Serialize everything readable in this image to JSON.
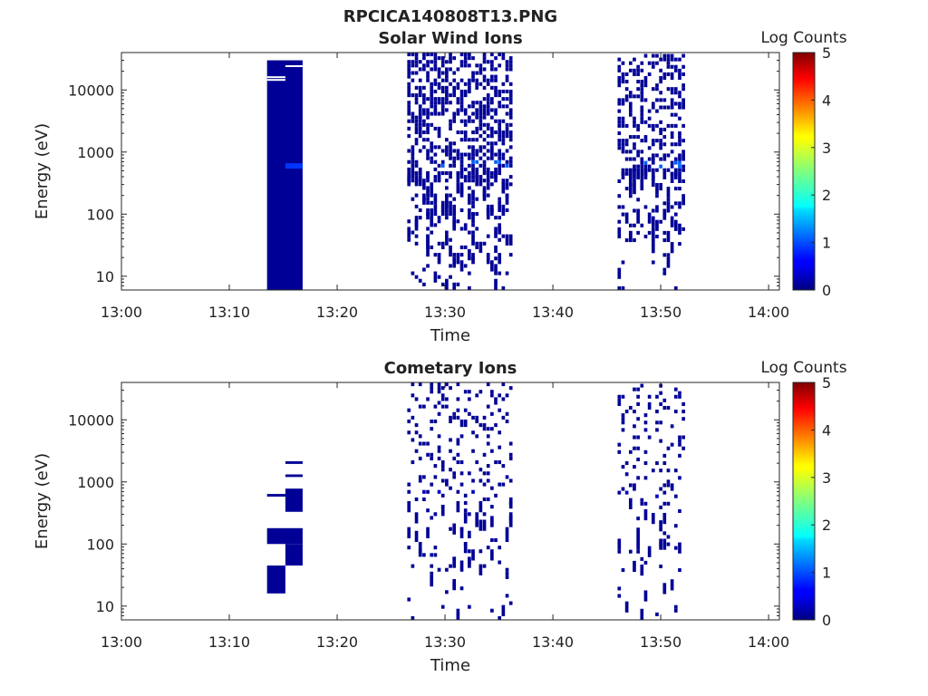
{
  "figure": {
    "title": "RPCICA140808T13.PNG"
  },
  "chart_data": [
    {
      "type": "heatmap",
      "title": "Solar Wind Ions",
      "xlabel": "Time",
      "ylabel": "Energy (eV)",
      "x_ticks": [
        "13:00",
        "13:10",
        "13:20",
        "13:30",
        "13:40",
        "13:50",
        "14:00"
      ],
      "xlim": [
        "13:00",
        "14:01"
      ],
      "y_scale": "log",
      "y_ticks": [
        10,
        100,
        1000,
        10000
      ],
      "ylim": [
        6,
        40000
      ],
      "colorbar": {
        "label": "Log Counts",
        "ticks": [
          0,
          1,
          2,
          3,
          4,
          5
        ],
        "range": [
          0,
          5
        ],
        "colormap": "jet"
      },
      "grid": false,
      "blocks": [
        {
          "t_start": "13:13.5",
          "t_end": "13:16.8",
          "e_min": 6,
          "e_max": 30000,
          "value": 0.1
        },
        {
          "t_start": "13:15.2",
          "t_end": "13:16.8",
          "e_min": 540,
          "e_max": 660,
          "value": 0.8
        }
      ],
      "scatter_groups": [
        {
          "t_start": "13:26.5",
          "t_end": "13:36.0",
          "e_min": 6,
          "e_max": 40000,
          "density": 0.5,
          "peak_value": 1.0
        },
        {
          "t_start": "13:46.0",
          "t_end": "13:52.0",
          "e_min": 6,
          "e_max": 38000,
          "density": 0.4,
          "peak_value": 1.0
        }
      ]
    },
    {
      "type": "heatmap",
      "title": "Cometary Ions",
      "xlabel": "Time",
      "ylabel": "Energy (eV)",
      "x_ticks": [
        "13:00",
        "13:10",
        "13:20",
        "13:30",
        "13:40",
        "13:50",
        "14:00"
      ],
      "xlim": [
        "13:00",
        "14:01"
      ],
      "y_scale": "log",
      "y_ticks": [
        10,
        100,
        1000,
        10000
      ],
      "ylim": [
        6,
        40000
      ],
      "colorbar": {
        "label": "Log Counts",
        "ticks": [
          0,
          1,
          2,
          3,
          4,
          5
        ],
        "range": [
          0,
          5
        ],
        "colormap": "jet"
      },
      "grid": false,
      "blocks": [
        {
          "t_start": "13:13.5",
          "t_end": "13:16.8",
          "e_min": 100,
          "e_max": 180,
          "value": 0.1
        },
        {
          "t_start": "13:15.2",
          "t_end": "13:16.8",
          "e_min": 45,
          "e_max": 100,
          "value": 0.1
        },
        {
          "t_start": "13:13.5",
          "t_end": "13:15.2",
          "e_min": 16,
          "e_max": 45,
          "value": 0.1
        },
        {
          "t_start": "13:15.2",
          "t_end": "13:16.8",
          "e_min": 330,
          "e_max": 780,
          "value": 0.1
        },
        {
          "t_start": "13:13.5",
          "t_end": "13:15.2",
          "e_min": 580,
          "e_max": 640,
          "value": 0.1
        },
        {
          "t_start": "13:15.2",
          "t_end": "13:16.8",
          "e_min": 1200,
          "e_max": 1320,
          "value": 0.1
        },
        {
          "t_start": "13:15.2",
          "t_end": "13:16.8",
          "e_min": 1950,
          "e_max": 2150,
          "value": 0.1
        }
      ],
      "scatter_groups": [
        {
          "t_start": "13:26.5",
          "t_end": "13:36.0",
          "e_min": 6,
          "e_max": 40000,
          "density": 0.18,
          "peak_value": 0.3
        },
        {
          "t_start": "13:46.0",
          "t_end": "13:52.0",
          "e_min": 6,
          "e_max": 38000,
          "density": 0.15,
          "peak_value": 0.3
        }
      ]
    }
  ]
}
